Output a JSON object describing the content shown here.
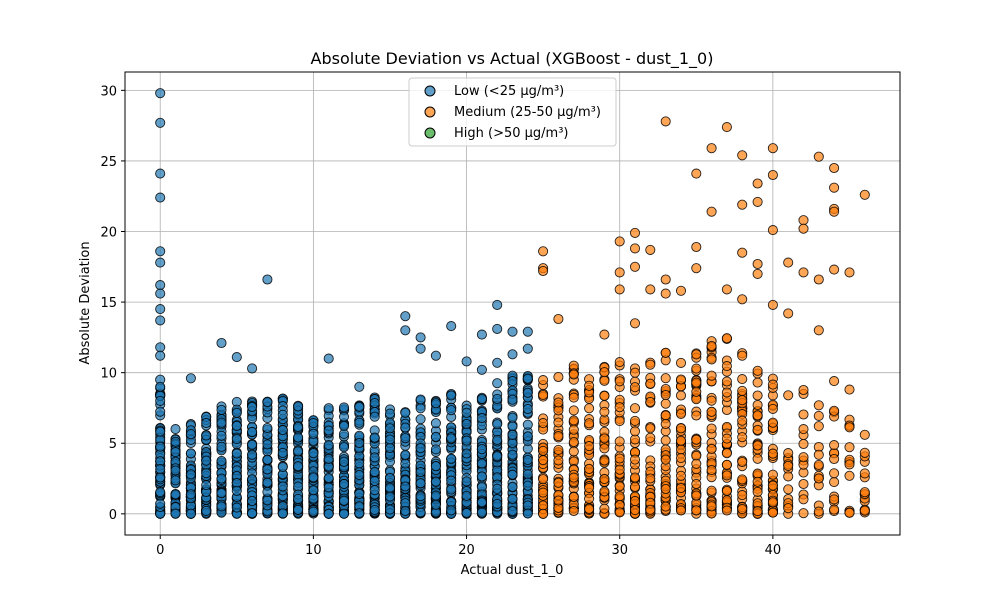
{
  "chart_data": {
    "type": "scatter",
    "title": "Absolute Deviation vs Actual (XGBoost - dust_1_0)",
    "xlabel": "Actual dust_1_0",
    "ylabel": "Absolute Deviation",
    "xlim": [
      -2.3,
      48.3
    ],
    "ylim": [
      -1.5,
      31.3
    ],
    "xticks": [
      0,
      10,
      20,
      30,
      40
    ],
    "yticks": [
      0,
      5,
      10,
      15,
      20,
      25,
      30
    ],
    "grid": true,
    "legend_position": "top-center",
    "series": [
      {
        "name": "Low (<25 µg/m³)",
        "color": "#1f77b4",
        "x_range": [
          0,
          24
        ],
        "outliers": [
          [
            0,
            29.8
          ],
          [
            0,
            27.7
          ],
          [
            0,
            24.1
          ],
          [
            0,
            22.4
          ],
          [
            0,
            18.6
          ],
          [
            0,
            17.8
          ],
          [
            0,
            16.2
          ],
          [
            0,
            15.6
          ],
          [
            0,
            14.5
          ],
          [
            0,
            13.7
          ],
          [
            0,
            11.8
          ],
          [
            0,
            11.2
          ],
          [
            0,
            9.5
          ],
          [
            0,
            9.0
          ],
          [
            7,
            16.6
          ],
          [
            4,
            12.1
          ],
          [
            5,
            11.1
          ],
          [
            6,
            10.3
          ],
          [
            2,
            9.6
          ],
          [
            11,
            11.0
          ],
          [
            13,
            9.0
          ],
          [
            16,
            14.0
          ],
          [
            16,
            13.0
          ],
          [
            17,
            12.5
          ],
          [
            18,
            11.2
          ],
          [
            17,
            11.7
          ],
          [
            19,
            13.3
          ],
          [
            20,
            10.8
          ],
          [
            21,
            12.7
          ],
          [
            22,
            14.8
          ],
          [
            22,
            13.1
          ],
          [
            23,
            12.9
          ],
          [
            24,
            12.9
          ],
          [
            23,
            11.3
          ],
          [
            24,
            11.7
          ],
          [
            21,
            10.2
          ],
          [
            22,
            10.7
          ]
        ]
      },
      {
        "name": "Medium (25-50 µg/m³)",
        "color": "#ff7f0e",
        "x_range": [
          25,
          46
        ],
        "outliers": [
          [
            25,
            18.6
          ],
          [
            25,
            17.4
          ],
          [
            25,
            17.2
          ],
          [
            26,
            13.8
          ],
          [
            29,
            12.7
          ],
          [
            30,
            19.3
          ],
          [
            30,
            17.1
          ],
          [
            30,
            15.9
          ],
          [
            31,
            19.9
          ],
          [
            31,
            18.8
          ],
          [
            31,
            17.5
          ],
          [
            31,
            13.5
          ],
          [
            32,
            18.7
          ],
          [
            32,
            15.9
          ],
          [
            33,
            27.8
          ],
          [
            33,
            16.6
          ],
          [
            33,
            15.6
          ],
          [
            34,
            15.8
          ],
          [
            35,
            24.1
          ],
          [
            35,
            18.9
          ],
          [
            35,
            17.4
          ],
          [
            36,
            25.9
          ],
          [
            36,
            21.4
          ],
          [
            37,
            27.4
          ],
          [
            37,
            15.9
          ],
          [
            38,
            25.4
          ],
          [
            38,
            21.9
          ],
          [
            38,
            18.5
          ],
          [
            38,
            15.2
          ],
          [
            39,
            23.4
          ],
          [
            39,
            22.1
          ],
          [
            39,
            17.7
          ],
          [
            39,
            17.0
          ],
          [
            40,
            25.9
          ],
          [
            40,
            24.0
          ],
          [
            40,
            20.1
          ],
          [
            40,
            14.8
          ],
          [
            41,
            17.8
          ],
          [
            41,
            14.2
          ],
          [
            42,
            20.8
          ],
          [
            42,
            20.2
          ],
          [
            42,
            17.1
          ],
          [
            43,
            25.3
          ],
          [
            43,
            16.6
          ],
          [
            43,
            13.0
          ],
          [
            44,
            24.5
          ],
          [
            44,
            23.1
          ],
          [
            44,
            21.6
          ],
          [
            44,
            21.4
          ],
          [
            44,
            17.3
          ],
          [
            44,
            9.4
          ],
          [
            45,
            17.1
          ],
          [
            45,
            8.8
          ],
          [
            46,
            22.6
          ],
          [
            46,
            5.6
          ]
        ]
      },
      {
        "name": "High (>50 µg/m³)",
        "color": "#2ca02c",
        "x_range": [],
        "outliers": []
      }
    ]
  }
}
